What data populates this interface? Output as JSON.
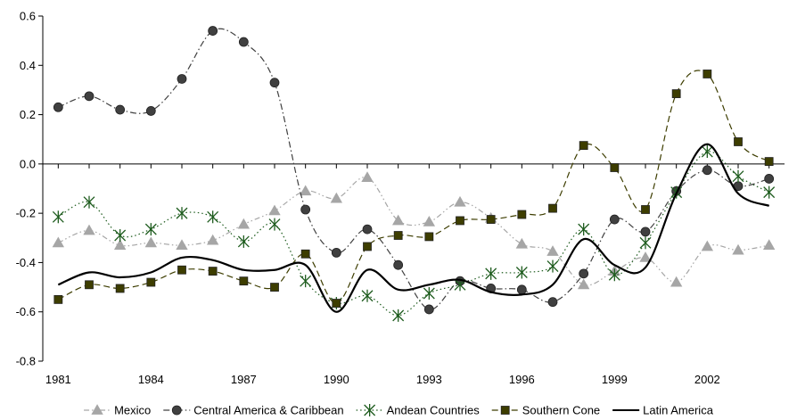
{
  "chart_data": {
    "type": "line",
    "title": "",
    "xlabel": "",
    "ylabel": "",
    "x": [
      1981,
      1982,
      1983,
      1984,
      1985,
      1986,
      1987,
      1988,
      1989,
      1990,
      1991,
      1992,
      1993,
      1994,
      1995,
      1996,
      1997,
      1998,
      1999,
      2000,
      2001,
      2002,
      2003,
      2004
    ],
    "xlim": [
      1980.5,
      2004.5
    ],
    "xticks": [
      1981,
      1984,
      1987,
      1990,
      1993,
      1996,
      1999,
      2002
    ],
    "xtick_labels": [
      "1981",
      "1984",
      "1987",
      "1990",
      "1993",
      "1996",
      "1999",
      "2002"
    ],
    "ylim": [
      -0.8,
      0.6
    ],
    "yticks": [
      0.6,
      0.4,
      0.2,
      0.0,
      -0.2,
      -0.4,
      -0.6,
      -0.8
    ],
    "ytick_labels": [
      "0.6",
      "0.4",
      "0.2",
      "0.0",
      "-0.2",
      "-0.4",
      "-0.6",
      "-0.8"
    ],
    "grid": false,
    "legend_position": "bottom",
    "series": [
      {
        "name": "Mexico",
        "marker": "triangle",
        "dash": "dash-dot-dot",
        "color": "#a6a6a6",
        "values": [
          -0.32,
          -0.27,
          -0.33,
          -0.32,
          -0.33,
          -0.31,
          -0.245,
          -0.19,
          -0.11,
          -0.14,
          -0.055,
          -0.23,
          -0.235,
          -0.155,
          -0.22,
          -0.325,
          -0.355,
          -0.49,
          -0.435,
          -0.38,
          -0.48,
          -0.335,
          -0.35,
          -0.33
        ]
      },
      {
        "name": "Central America & Caribbean",
        "marker": "circle",
        "dash": "dash-dot",
        "color": "#404040",
        "values": [
          0.23,
          0.275,
          0.22,
          0.215,
          0.345,
          0.54,
          0.495,
          0.33,
          -0.185,
          -0.36,
          -0.265,
          -0.41,
          -0.59,
          -0.475,
          -0.505,
          -0.51,
          -0.56,
          -0.445,
          -0.225,
          -0.275,
          -0.11,
          -0.025,
          -0.09,
          -0.06
        ]
      },
      {
        "name": "Andean Countries",
        "marker": "star",
        "dash": "dotted",
        "color": "#1e5c1e",
        "values": [
          -0.215,
          -0.155,
          -0.29,
          -0.265,
          -0.2,
          -0.215,
          -0.315,
          -0.245,
          -0.475,
          -0.565,
          -0.535,
          -0.615,
          -0.525,
          -0.49,
          -0.445,
          -0.44,
          -0.415,
          -0.265,
          -0.45,
          -0.32,
          -0.115,
          0.05,
          -0.05,
          -0.115
        ]
      },
      {
        "name": "Southern Cone",
        "marker": "square",
        "dash": "dashed",
        "color": "#3d3d00",
        "values": [
          -0.55,
          -0.49,
          -0.505,
          -0.48,
          -0.43,
          -0.435,
          -0.475,
          -0.5,
          -0.365,
          -0.565,
          -0.335,
          -0.29,
          -0.295,
          -0.23,
          -0.225,
          -0.205,
          -0.18,
          0.075,
          -0.015,
          -0.185,
          0.285,
          0.365,
          0.09,
          0.01
        ]
      },
      {
        "name": "Latin America",
        "marker": "none",
        "dash": "solid",
        "color": "#000000",
        "values": [
          -0.49,
          -0.44,
          -0.46,
          -0.44,
          -0.38,
          -0.39,
          -0.43,
          -0.43,
          -0.41,
          -0.6,
          -0.43,
          -0.51,
          -0.49,
          -0.47,
          -0.52,
          -0.53,
          -0.49,
          -0.305,
          -0.41,
          -0.42,
          -0.12,
          0.08,
          -0.12,
          -0.17
        ]
      }
    ]
  }
}
